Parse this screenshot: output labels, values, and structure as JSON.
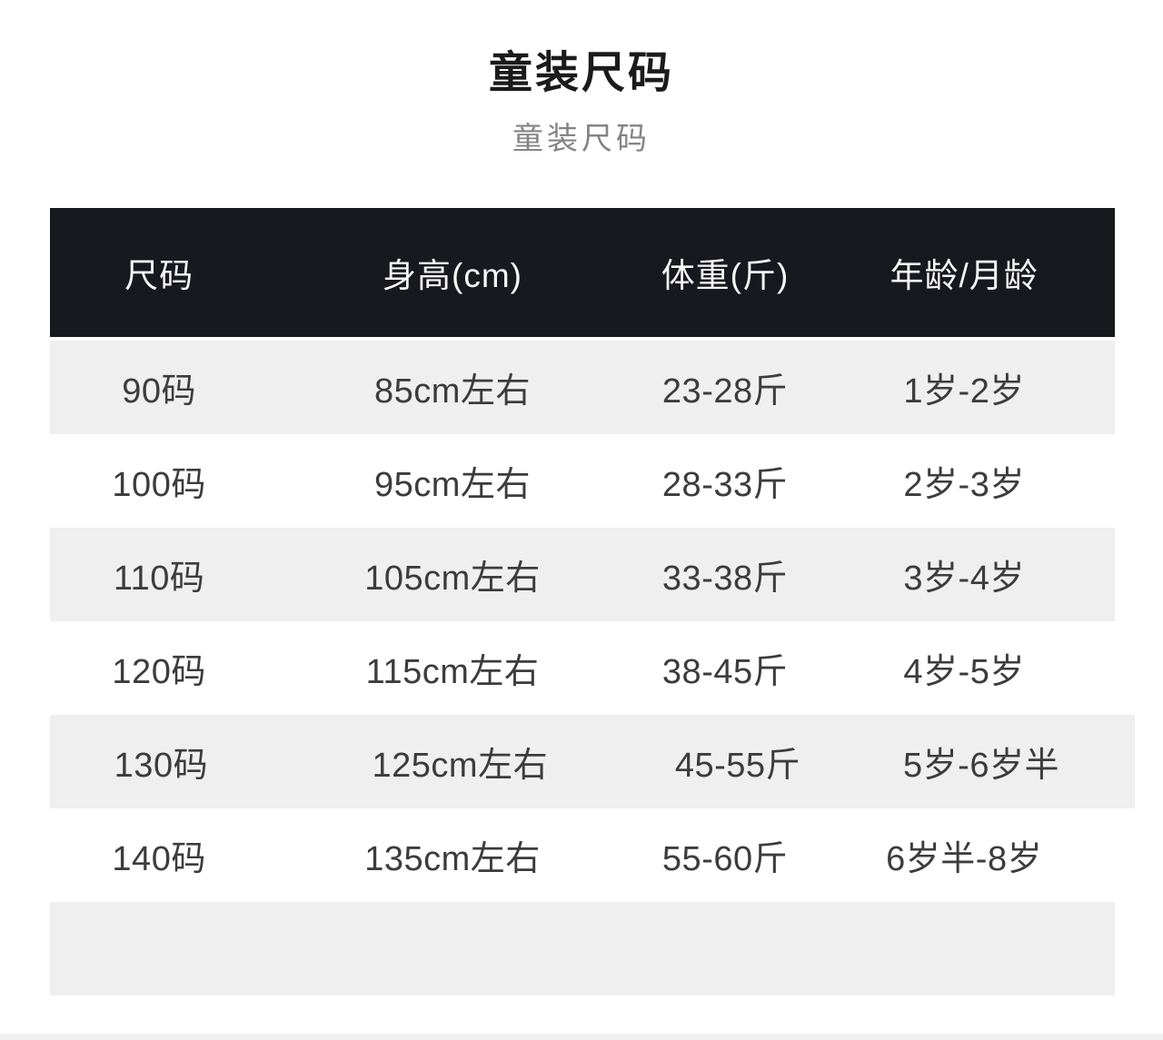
{
  "page": {
    "title": "童装尺码",
    "subtitle": "童装尺码"
  },
  "colors": {
    "header_bg": "#18181f",
    "header_text": "#f7f7f7",
    "row_alt_bg": "#efefef",
    "row_bg": "#ffffff",
    "cell_text": "#3c3c3e",
    "title_text": "#1b1b1b",
    "subtitle_text": "#848484",
    "bottom_strip": "#f1f1f1",
    "page_bg": "#ffffff"
  },
  "table": {
    "columns": [
      {
        "key": "size",
        "label": "尺码"
      },
      {
        "key": "height",
        "label": "身高(cm)"
      },
      {
        "key": "weight",
        "label": "体重(斤)"
      },
      {
        "key": "age",
        "label": "年龄/月龄"
      }
    ],
    "rows": [
      {
        "size": "90码",
        "height": "85cm左右",
        "weight": "23-28斤",
        "age": "1岁-2岁"
      },
      {
        "size": "100码",
        "height": "95cm左右",
        "weight": "28-33斤",
        "age": "2岁-3岁"
      },
      {
        "size": "110码",
        "height": "105cm左右",
        "weight": "33-38斤",
        "age": "3岁-4岁"
      },
      {
        "size": "120码",
        "height": "115cm左右",
        "weight": "38-45斤",
        "age": "4岁-5岁"
      },
      {
        "size": "130码",
        "height": "125cm左右",
        "weight": "45-55斤",
        "age": "5岁-6岁半"
      },
      {
        "size": "140码",
        "height": "135cm左右",
        "weight": "55-60斤",
        "age": "6岁半-8岁"
      },
      {
        "size": "",
        "height": "",
        "weight": "",
        "age": ""
      }
    ]
  }
}
